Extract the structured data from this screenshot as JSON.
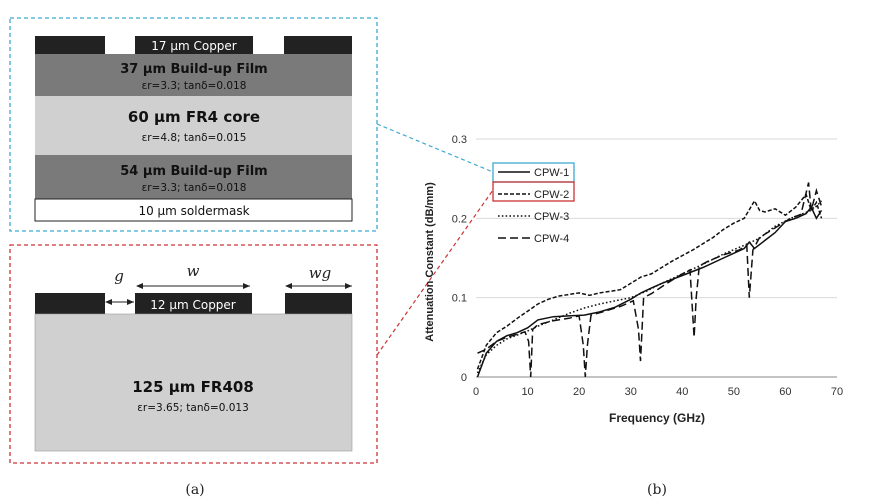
{
  "stackup1": {
    "top_copper": "17 μm Copper",
    "layers": [
      {
        "title": "37 μm Build-up Film",
        "props": "εr=3.3; tanδ=0.018",
        "color": "#7a7a7a"
      },
      {
        "title": "60 μm FR4 core",
        "props": "εr=4.8; tanδ=0.015",
        "color": "#d0d0d0"
      },
      {
        "title": "54 μm Build-up Film",
        "props": "εr=3.3; tanδ=0.018",
        "color": "#7a7a7a"
      }
    ],
    "soldermask": "10 μm soldermask",
    "frame_color": "#3fa9d0"
  },
  "stackup2": {
    "copper": "12 μm Copper",
    "dim_g": "g",
    "dim_w": "w",
    "dim_wg": "wg",
    "substrate_title": "125 μm FR408",
    "substrate_props": "εr=3.65; tanδ=0.013",
    "frame_color": "#cc3333"
  },
  "captions": {
    "a": "(a)",
    "b": "(b)"
  },
  "chart_data": {
    "type": "line",
    "xlabel": "Frequency (GHz)",
    "ylabel": "Attenuation Constant (dB/mm)",
    "xlim": [
      0,
      70
    ],
    "ylim": [
      0,
      0.3
    ],
    "xticks": [
      0,
      10,
      20,
      30,
      40,
      50,
      60,
      70
    ],
    "yticks": [
      0,
      0.1,
      0.2,
      0.3
    ],
    "grid": "horizontal",
    "legend": "top-left",
    "series": [
      {
        "name": "CPW-1",
        "style": "solid",
        "x": [
          0.3,
          2,
          4,
          6,
          8,
          10,
          12,
          15,
          18,
          21,
          24,
          27,
          30,
          32,
          34,
          36,
          40,
          44,
          48,
          52,
          53,
          54,
          56,
          58,
          60,
          62,
          64,
          65,
          66,
          67
        ],
        "y": [
          0.0,
          0.03,
          0.045,
          0.052,
          0.056,
          0.062,
          0.072,
          0.076,
          0.077,
          0.078,
          0.082,
          0.088,
          0.098,
          0.106,
          0.112,
          0.118,
          0.128,
          0.138,
          0.15,
          0.162,
          0.17,
          0.162,
          0.172,
          0.182,
          0.196,
          0.2,
          0.206,
          0.214,
          0.2,
          0.21
        ]
      },
      {
        "name": "CPW-2",
        "style": "dashdense",
        "x": [
          0.3,
          2,
          4,
          6,
          8,
          10,
          12,
          14,
          16,
          18,
          20,
          22,
          24,
          26,
          28,
          30,
          32,
          34,
          36,
          38,
          40,
          42,
          44,
          46,
          48,
          50,
          52,
          54,
          55,
          56,
          58,
          60,
          62,
          64,
          65,
          66,
          67
        ],
        "y": [
          0.01,
          0.04,
          0.056,
          0.064,
          0.074,
          0.083,
          0.092,
          0.098,
          0.102,
          0.104,
          0.106,
          0.103,
          0.106,
          0.108,
          0.11,
          0.118,
          0.126,
          0.13,
          0.138,
          0.146,
          0.153,
          0.16,
          0.168,
          0.176,
          0.186,
          0.194,
          0.2,
          0.222,
          0.21,
          0.208,
          0.212,
          0.204,
          0.214,
          0.23,
          0.21,
          0.22,
          0.2
        ]
      },
      {
        "name": "CPW-3",
        "style": "dotted",
        "x": [
          0.3,
          2,
          4,
          6,
          8,
          10,
          12,
          15,
          18,
          21,
          24,
          27,
          30,
          33,
          36,
          40,
          44,
          48,
          52,
          55,
          58,
          61,
          63,
          65,
          66,
          67
        ],
        "y": [
          0.005,
          0.028,
          0.04,
          0.048,
          0.053,
          0.058,
          0.064,
          0.072,
          0.08,
          0.087,
          0.092,
          0.096,
          0.1,
          0.108,
          0.118,
          0.13,
          0.142,
          0.155,
          0.166,
          0.175,
          0.19,
          0.2,
          0.205,
          0.21,
          0.215,
          0.222
        ]
      },
      {
        "name": "CPW-4",
        "style": "dashed",
        "x": [
          0.3,
          2,
          4,
          6,
          8,
          9.5,
          10.2,
          10.6,
          11,
          12,
          15,
          18,
          20,
          20.8,
          21.2,
          21.6,
          22.3,
          25,
          28,
          30.5,
          31.5,
          31.9,
          32.5,
          34,
          37,
          40,
          41.5,
          42.3,
          42.7,
          43.3,
          45,
          48,
          51,
          52.5,
          53,
          53.7,
          55,
          58,
          61,
          63,
          64.5,
          65,
          66,
          67
        ],
        "y": [
          0.03,
          0.035,
          0.045,
          0.05,
          0.054,
          0.057,
          0.045,
          0.0,
          0.06,
          0.066,
          0.071,
          0.074,
          0.077,
          0.04,
          0.0,
          0.04,
          0.078,
          0.083,
          0.089,
          0.096,
          0.06,
          0.02,
          0.1,
          0.105,
          0.118,
          0.13,
          0.135,
          0.05,
          0.1,
          0.14,
          0.146,
          0.154,
          0.16,
          0.166,
          0.1,
          0.16,
          0.176,
          0.188,
          0.2,
          0.205,
          0.245,
          0.21,
          0.235,
          0.215
        ]
      }
    ]
  }
}
